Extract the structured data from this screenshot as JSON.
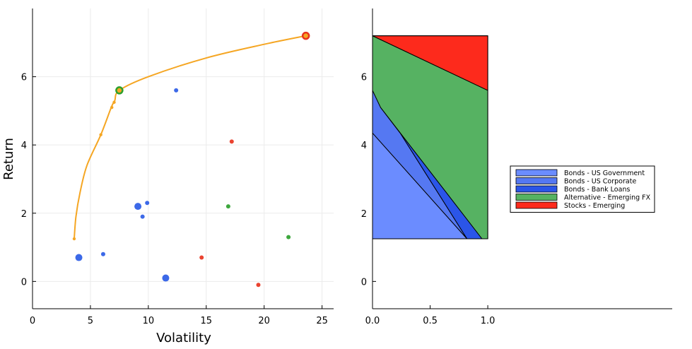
{
  "chart_data": [
    {
      "type": "scatter",
      "xlabel": "Volatility",
      "ylabel": "Return",
      "xlim": [
        0,
        26
      ],
      "ylim": [
        -0.8,
        8.0
      ],
      "xticks": [
        "0",
        "5",
        "10",
        "15",
        "20",
        "25"
      ],
      "yticks": [
        "0",
        "2",
        "4",
        "6"
      ],
      "grid": true,
      "frontier": {
        "color": "#f5a623",
        "points": [
          {
            "x": 3.6,
            "y": 1.25
          },
          {
            "x": 3.75,
            "y": 1.9
          },
          {
            "x": 4.1,
            "y": 2.6
          },
          {
            "x": 4.7,
            "y": 3.4
          },
          {
            "x": 5.9,
            "y": 4.3
          },
          {
            "x": 6.8,
            "y": 5.1
          },
          {
            "x": 7.1,
            "y": 5.3
          },
          {
            "x": 7.5,
            "y": 5.6
          },
          {
            "x": 10,
            "y": 6.0
          },
          {
            "x": 15,
            "y": 6.55
          },
          {
            "x": 20,
            "y": 6.95
          },
          {
            "x": 23.6,
            "y": 7.2
          }
        ],
        "markers": [
          {
            "x": 3.6,
            "y": 1.25
          },
          {
            "x": 5.9,
            "y": 4.3
          },
          {
            "x": 6.85,
            "y": 5.1
          },
          {
            "x": 7.05,
            "y": 5.25
          }
        ]
      },
      "special_points": [
        {
          "x": 7.5,
          "y": 5.6,
          "color": "#2ca02c"
        },
        {
          "x": 23.6,
          "y": 7.2,
          "color": "#e8331e"
        }
      ],
      "points": [
        {
          "x": 4.0,
          "y": 0.7,
          "color": "#2b5ce6",
          "size": "large"
        },
        {
          "x": 6.1,
          "y": 0.8,
          "color": "#2b5ce6",
          "size": "small"
        },
        {
          "x": 9.1,
          "y": 2.2,
          "color": "#2b5ce6",
          "size": "large"
        },
        {
          "x": 9.5,
          "y": 1.9,
          "color": "#2b5ce6",
          "size": "small"
        },
        {
          "x": 9.9,
          "y": 2.3,
          "color": "#2b5ce6",
          "size": "small"
        },
        {
          "x": 11.5,
          "y": 0.1,
          "color": "#2b5ce6",
          "size": "large"
        },
        {
          "x": 12.4,
          "y": 5.6,
          "color": "#2b5ce6",
          "size": "small"
        },
        {
          "x": 14.6,
          "y": 0.7,
          "color": "#e8331e",
          "size": "small"
        },
        {
          "x": 17.2,
          "y": 4.1,
          "color": "#e8331e",
          "size": "small"
        },
        {
          "x": 19.5,
          "y": -0.1,
          "color": "#e8331e",
          "size": "small"
        },
        {
          "x": 16.9,
          "y": 2.2,
          "color": "#2ca02c",
          "size": "small"
        },
        {
          "x": 22.1,
          "y": 1.3,
          "color": "#2ca02c",
          "size": "small"
        }
      ]
    },
    {
      "type": "area",
      "xlim": [
        0,
        2.6
      ],
      "ylim": [
        -0.8,
        8.0
      ],
      "xticks": [
        "0.0",
        "0.5",
        "1.0"
      ],
      "yticks": [
        "0",
        "2",
        "4",
        "6"
      ],
      "y_range": [
        1.25,
        7.2
      ],
      "series": [
        {
          "name": "Bonds - US Government",
          "color": "#6b8cff",
          "polygon": [
            [
              0,
              1.25
            ],
            [
              0.82,
              1.25
            ],
            [
              0,
              4.35
            ]
          ]
        },
        {
          "name": "Bonds - US Corporate",
          "color": "#5578f2",
          "polygon": [
            [
              0,
              4.35
            ],
            [
              0.82,
              1.25
            ],
            [
              0.24,
              4.35
            ],
            [
              0.07,
              5.1
            ],
            [
              0,
              5.6
            ]
          ]
        },
        {
          "name": "Bonds - Bank Loans",
          "color": "#2b55e8",
          "polygon": [
            [
              0.82,
              1.25
            ],
            [
              0.95,
              1.25
            ],
            [
              0.07,
              5.1
            ],
            [
              0.24,
              4.35
            ]
          ]
        },
        {
          "name": "Alternative - Emerging FX",
          "color": "#56b262",
          "polygon": [
            [
              0,
              5.6
            ],
            [
              0.07,
              5.1
            ],
            [
              0.95,
              1.25
            ],
            [
              1.0,
              1.25
            ],
            [
              1.0,
              5.6
            ],
            [
              0,
              7.2
            ]
          ]
        },
        {
          "name": "Stocks - Emerging",
          "color": "#fd2a1c",
          "polygon": [
            [
              0,
              7.2
            ],
            [
              1.0,
              7.2
            ],
            [
              1.0,
              5.6
            ]
          ]
        }
      ],
      "legend": "right"
    }
  ]
}
